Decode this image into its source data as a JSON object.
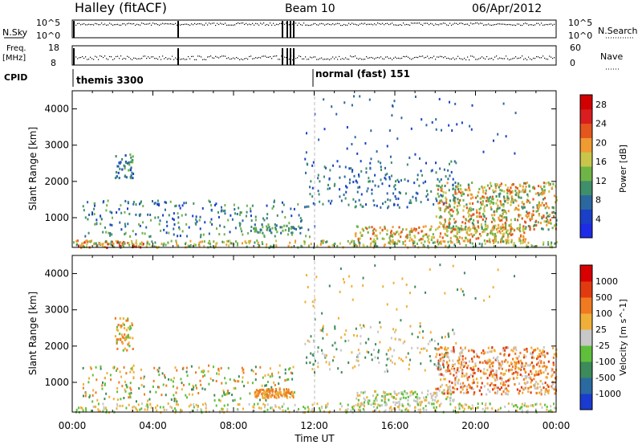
{
  "header": {
    "station": "Halley (fitACF)",
    "beam": "Beam 10",
    "date": "06/Apr/2012"
  },
  "strips": {
    "nsky_label": "N.Sky",
    "nsky_ticks": [
      "10^5",
      "10^0"
    ],
    "nsearch_label": "N.Search",
    "nsearch_ticks": [
      "10^5",
      "10^0"
    ],
    "freq_label": "Freq.",
    "freq_unit": "[MHz]",
    "freq_ticks": [
      "18",
      "8"
    ],
    "nave_label": "Nave",
    "nave_ticks": [
      "60",
      "0"
    ],
    "cpid_label": "CPID",
    "cpid_modes": [
      "themis 3300",
      "normal (fast) 151"
    ]
  },
  "chart_data": [
    {
      "type": "heatmap",
      "title": "",
      "xlabel": "Time UT",
      "ylabel": "Slant Range [km]",
      "xlim": [
        "00:00",
        "24:00"
      ],
      "ylim": [
        180,
        4500
      ],
      "xticks": [
        "00:00",
        "04:00",
        "08:00",
        "12:00",
        "16:00",
        "20:00",
        "00:00"
      ],
      "yticks": [
        1000,
        2000,
        3000,
        4000
      ],
      "colorbar": {
        "label": "Power [dB]",
        "range": [
          0,
          30
        ],
        "ticks": [
          4,
          8,
          12,
          16,
          20,
          24,
          28
        ],
        "colors": [
          "#1e2be6",
          "#1a40c8",
          "#2b68a0",
          "#3f8f6a",
          "#6fb447",
          "#c7c64a",
          "#f09a32",
          "#e4561d",
          "#d81e1e",
          "#d20000"
        ]
      },
      "regions": [
        {
          "t_start": 0.1,
          "t_end": 3.5,
          "r_min": 200,
          "r_max": 400,
          "level": "red-orange"
        },
        {
          "t_start": 9.0,
          "t_end": 11.0,
          "r_min": 600,
          "r_max": 850,
          "level": "green"
        },
        {
          "t_start": 2.1,
          "t_end": 3.0,
          "r_min": 2100,
          "r_max": 2800,
          "level": "green-blue"
        },
        {
          "t_start": 14.0,
          "t_end": 22.5,
          "r_min": 350,
          "r_max": 800,
          "level": "orange-red"
        },
        {
          "t_start": 18.0,
          "t_end": 24.0,
          "r_min": 700,
          "r_max": 2000,
          "level": "green-orange"
        }
      ]
    },
    {
      "type": "heatmap",
      "title": "",
      "xlabel": "Time UT",
      "ylabel": "Slant Range [km]",
      "xlim": [
        "00:00",
        "24:00"
      ],
      "ylim": [
        180,
        4500
      ],
      "xticks": [
        "00:00",
        "04:00",
        "08:00",
        "12:00",
        "16:00",
        "20:00",
        "00:00"
      ],
      "yticks": [
        1000,
        2000,
        3000,
        4000
      ],
      "colorbar": {
        "label": "Velocity [m s^-1]",
        "ticks": [
          1000,
          500,
          100,
          25,
          -25,
          -100,
          -500,
          -1000
        ],
        "colors": [
          "#1a3bd0",
          "#2a6aa0",
          "#3d8a5a",
          "#5fbf3d",
          "#c8c8c8",
          "#f0b038",
          "#f07a20",
          "#e23a10",
          "#d80000"
        ]
      },
      "regions": [
        {
          "t_start": 2.1,
          "t_end": 3.0,
          "r_min": 1900,
          "r_max": 2800,
          "level": "orange"
        },
        {
          "t_start": 14.0,
          "t_end": 19.0,
          "r_min": 400,
          "r_max": 800,
          "level": "grey"
        },
        {
          "t_start": 18.0,
          "t_end": 24.0,
          "r_min": 700,
          "r_max": 2000,
          "level": "orange-red"
        }
      ]
    }
  ]
}
